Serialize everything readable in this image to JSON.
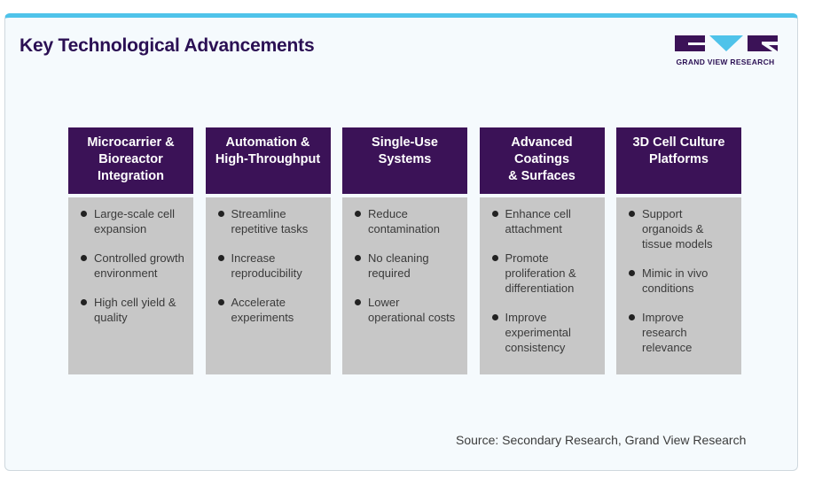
{
  "title": "Key Technological Advancements",
  "logo": {
    "text": "GRAND VIEW RESEARCH",
    "colors": {
      "dark": "#3b1257",
      "accent": "#4fc3ea"
    }
  },
  "columns": [
    {
      "header": [
        "Microcarrier &",
        "Bioreactor",
        "Integration"
      ],
      "bullets": [
        [
          "Large-scale cell",
          "expansion"
        ],
        [
          "Controlled growth",
          "environment"
        ],
        [
          "High cell yield &",
          "quality"
        ]
      ]
    },
    {
      "header": [
        "Automation &",
        "High-Throughput"
      ],
      "bullets": [
        [
          "Streamline",
          "repetitive tasks"
        ],
        [
          "Increase",
          "reproducibility"
        ],
        [
          "Accelerate",
          "experiments"
        ]
      ]
    },
    {
      "header": [
        "Single-Use",
        "Systems"
      ],
      "bullets": [
        [
          "Reduce",
          "contamination"
        ],
        [
          "No cleaning",
          "required"
        ],
        [
          "Lower",
          "operational costs"
        ]
      ]
    },
    {
      "header": [
        "Advanced",
        "Coatings",
        "& Surfaces"
      ],
      "bullets": [
        [
          "Enhance cell",
          "attachment"
        ],
        [
          "Promote",
          "proliferation &",
          "differentiation"
        ],
        [
          "Improve",
          "experimental",
          "consistency"
        ]
      ]
    },
    {
      "header": [
        "3D Cell Culture",
        "Platforms"
      ],
      "bullets": [
        [
          "Support",
          "organoids &",
          "tissue models"
        ],
        [
          "Mimic in vivo",
          "conditions"
        ],
        [
          "Improve",
          "research",
          "relevance"
        ]
      ]
    }
  ],
  "source": "Source: Secondary Research, Grand View Research",
  "colors": {
    "header_bg": "#3b1257",
    "body_bg": "#c7c7c7",
    "title": "#2b1054",
    "top_border": "#4fc3ea"
  }
}
